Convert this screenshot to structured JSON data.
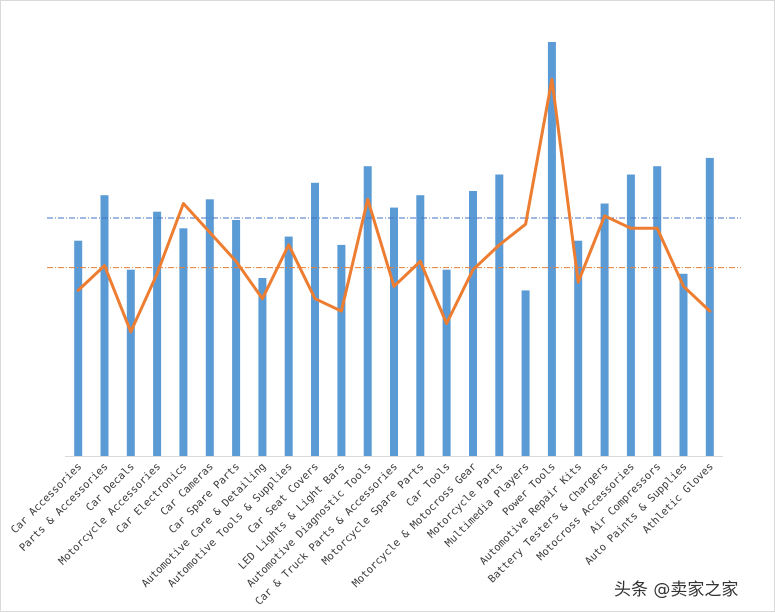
{
  "watermark": "头条 @卖家之家",
  "colors": {
    "bars": "#5b9bd5",
    "line": "#ed7d31",
    "bar_avg_line": "#4472c4",
    "line_avg_line": "#ed7d31",
    "axis": "#d9d9d9"
  },
  "chart_data": {
    "type": "bar",
    "categories": [
      "Car Accessories",
      "Parts & Accessories",
      "Car Decals",
      "Motorcycle Accessories",
      "Car Electronics",
      "Car Cameras",
      "Car Spare Parts",
      "Automotive Care & Detailing",
      "Automotive Tools & Supplies",
      "Car Seat Covers",
      "LED Lights & Light Bars",
      "Automotive Diagnostic Tools",
      "Car & Truck Parts & Accessories",
      "Motorcycle Spare Parts",
      "Car Tools",
      "Motorcycle & Motocross Gear",
      "Motorcycle Parts",
      "Multimedia Players",
      "Power Tools",
      "Automotive Repair Kits",
      "Battery Testers & Chargers",
      "Motocross Accessories",
      "Air Compressors",
      "Auto Paints & Supplies",
      "Athletic Gloves"
    ],
    "series": [
      {
        "type": "bar",
        "values": [
          52,
          63,
          45,
          59,
          55,
          62,
          57,
          43,
          53,
          66,
          51,
          70,
          60,
          63,
          45,
          64,
          68,
          40,
          100,
          52,
          61,
          68,
          70,
          44,
          72
        ]
      },
      {
        "type": "line",
        "values": [
          40,
          46,
          30,
          44,
          61,
          54,
          47,
          38,
          51,
          38,
          35,
          62,
          41,
          47,
          32,
          45,
          51,
          56,
          91,
          42,
          58,
          55,
          55,
          41,
          35
        ]
      }
    ],
    "reference_lines": [
      {
        "series_type": "bar",
        "style": "dash-dot",
        "value": 57.5
      },
      {
        "series_type": "line",
        "style": "dash-dot",
        "value": 45.5
      }
    ],
    "ylim": [
      0,
      100
    ],
    "grid": false,
    "legend": "none",
    "y_axis_visible": false
  }
}
